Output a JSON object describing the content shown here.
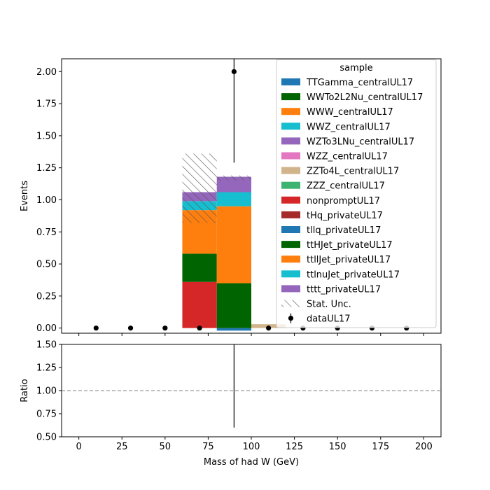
{
  "chart_data": [
    {
      "type": "bar",
      "stacked": true,
      "xlabel": "",
      "ylabel": "Events",
      "xlim": [
        -10,
        210
      ],
      "ylim": [
        -0.04,
        2.1
      ],
      "bin_edges": [
        0,
        20,
        40,
        60,
        80,
        100,
        120,
        140,
        160,
        180,
        200
      ],
      "xticks": [
        0,
        25,
        50,
        75,
        100,
        125,
        150,
        175,
        200
      ],
      "yticks": [
        0.0,
        0.25,
        0.5,
        0.75,
        1.0,
        1.25,
        1.5,
        1.75,
        2.0
      ],
      "ytick_labels": [
        "0.00",
        "0.25",
        "0.50",
        "0.75",
        "1.00",
        "1.25",
        "1.50",
        "1.75",
        "2.00"
      ],
      "series": [
        {
          "name": "TTGamma_centralUL17",
          "color": "#1f77b4",
          "values": [
            0,
            0,
            0,
            0,
            -0.02,
            0,
            0,
            0,
            0,
            0
          ]
        },
        {
          "name": "WWTo2L2Nu_centralUL17",
          "color": "#006400",
          "values": [
            0,
            0,
            0,
            0,
            0,
            0,
            0,
            0,
            0,
            0
          ]
        },
        {
          "name": "WWW_centralUL17",
          "color": "#ff7f0e",
          "values": [
            0,
            0,
            0,
            0,
            0,
            0,
            0,
            0,
            0,
            0
          ]
        },
        {
          "name": "WWZ_centralUL17",
          "color": "#17becf",
          "values": [
            0,
            0,
            0,
            0,
            0,
            0,
            0,
            0,
            0,
            0
          ]
        },
        {
          "name": "WZTo3LNu_centralUL17",
          "color": "#9467bd",
          "values": [
            0,
            0,
            0,
            0,
            0,
            0,
            0,
            0,
            0,
            0
          ]
        },
        {
          "name": "WZZ_centralUL17",
          "color": "#e377c2",
          "values": [
            0,
            0,
            0,
            0,
            0,
            0,
            0,
            0,
            0,
            0
          ]
        },
        {
          "name": "ZZTo4L_centralUL17",
          "color": "#d2b48c",
          "values": [
            0,
            0,
            0,
            0,
            0,
            0.03,
            0,
            0,
            0,
            0
          ]
        },
        {
          "name": "ZZZ_centralUL17",
          "color": "#3cb371",
          "values": [
            0,
            0,
            0,
            0,
            0,
            0,
            0,
            0,
            0,
            0
          ]
        },
        {
          "name": "nonpromptUL17",
          "color": "#d62728",
          "values": [
            0,
            0,
            0,
            0.36,
            0,
            0,
            0,
            0,
            0,
            0
          ]
        },
        {
          "name": "tHq_privateUL17",
          "color": "#a52a2a",
          "values": [
            0,
            0,
            0,
            0,
            0,
            0,
            0,
            0,
            0,
            0
          ]
        },
        {
          "name": "tllq_privateUL17",
          "color": "#1f77b4",
          "values": [
            0,
            0,
            0,
            0,
            0,
            0,
            0,
            0,
            0,
            0
          ]
        },
        {
          "name": "ttHJet_privateUL17",
          "color": "#006400",
          "values": [
            0,
            0,
            0,
            0.22,
            0.35,
            0,
            0,
            0,
            0,
            0
          ]
        },
        {
          "name": "ttllJet_privateUL17",
          "color": "#ff7f0e",
          "values": [
            0,
            0,
            0,
            0.34,
            0.6,
            0,
            0,
            0,
            0,
            0
          ]
        },
        {
          "name": "ttlnuJet_privateUL17",
          "color": "#17becf",
          "values": [
            0,
            0,
            0,
            0.07,
            0.11,
            0,
            0,
            0,
            0,
            0
          ]
        },
        {
          "name": "tttt_privateUL17",
          "color": "#9467bd",
          "values": [
            0,
            0,
            0,
            0.07,
            0.12,
            0,
            0,
            0,
            0,
            0
          ]
        }
      ],
      "stat_unc": {
        "name": "Stat. Unc.",
        "bins": [
          {
            "x0": 60,
            "x1": 80,
            "low": 0.82,
            "high": 1.36
          },
          {
            "x0": 80,
            "x1": 100,
            "low": 1.15,
            "high": 1.19
          }
        ]
      },
      "data_points": {
        "name": "dataUL17",
        "x": [
          10,
          30,
          50,
          70,
          90,
          110,
          130,
          150,
          170,
          190
        ],
        "y": [
          0,
          0,
          0,
          0,
          2,
          0,
          0,
          0,
          0,
          0
        ],
        "err_low": [
          0,
          0,
          0,
          0,
          1.29,
          0,
          0,
          0,
          0,
          0
        ],
        "err_high": [
          0,
          0,
          0,
          0,
          2.64,
          0,
          0,
          0,
          0,
          0
        ]
      },
      "legend": {
        "title": "sample",
        "placement": "top-right"
      }
    },
    {
      "type": "line",
      "xlabel": "Mass of had W (GeV)",
      "ylabel": "Ratio",
      "xlim": [
        -10,
        210
      ],
      "ylim": [
        0.5,
        1.5
      ],
      "xticks": [
        0,
        25,
        50,
        75,
        100,
        125,
        150,
        175,
        200
      ],
      "xtick_labels": [
        "0",
        "25",
        "50",
        "75",
        "100",
        "125",
        "150",
        "175",
        "200"
      ],
      "yticks": [
        0.5,
        0.75,
        1.0,
        1.25,
        1.5
      ],
      "ytick_labels": [
        "0.50",
        "0.75",
        "1.00",
        "1.25",
        "1.50"
      ],
      "reference_line": 1.0,
      "ratio_errors": [
        {
          "x": 90,
          "low": 0.6,
          "high": 1.5
        }
      ]
    }
  ]
}
